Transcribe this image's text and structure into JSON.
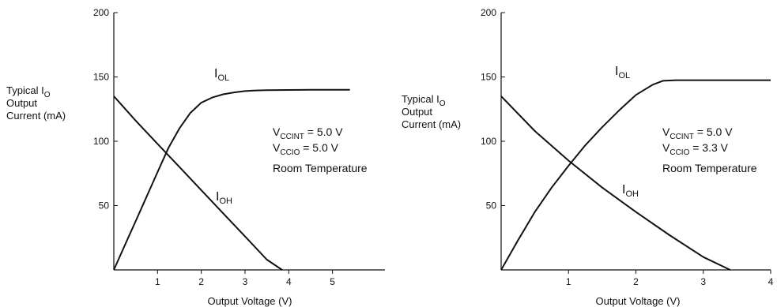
{
  "chart_data": [
    {
      "type": "line",
      "title": "",
      "ylabel": {
        "line1_main": "Typical I",
        "line1_sub": "O",
        "line2": "Output",
        "line3": "Current (mA)"
      },
      "xlabel": "Output Voltage (V)",
      "xlim": [
        0,
        6.2
      ],
      "ylim": [
        0,
        200
      ],
      "xticks": [
        1,
        2,
        3,
        4,
        5
      ],
      "yticks": [
        50,
        100,
        150,
        200
      ],
      "grid": false,
      "series": [
        {
          "name_main": "I",
          "name_sub": "OL",
          "x": [
            0,
            0.25,
            0.5,
            0.75,
            1.0,
            1.25,
            1.5,
            1.75,
            2.0,
            2.25,
            2.5,
            2.75,
            3.0,
            3.25,
            3.5,
            4.0,
            4.5,
            5.0,
            5.4
          ],
          "y": [
            0,
            19,
            38,
            57,
            76,
            95,
            110,
            122,
            130,
            134,
            136.5,
            138,
            139,
            139.5,
            139.7,
            139.9,
            140,
            140,
            140
          ]
        },
        {
          "name_main": "I",
          "name_sub": "OH",
          "x": [
            0,
            0.5,
            1.0,
            1.5,
            2.0,
            2.5,
            3.0,
            3.5,
            3.85
          ],
          "y": [
            135,
            116,
            98,
            80,
            62,
            44,
            26,
            8,
            0
          ]
        }
      ],
      "annotations": [
        {
          "main": "V",
          "sub": "CCINT",
          "rest": " = 5.0 V"
        },
        {
          "main": "V",
          "sub": "CCIO",
          "rest": " = 5.0 V"
        },
        {
          "main": "Room Temperature",
          "sub": "",
          "rest": ""
        }
      ]
    },
    {
      "type": "line",
      "title": "",
      "ylabel": {
        "line1_main": "Typical I",
        "line1_sub": "O",
        "line2": "Output",
        "line3": "Current (mA)"
      },
      "xlabel": "Output Voltage (V)",
      "xlim": [
        0,
        4.0
      ],
      "ylim": [
        0,
        200
      ],
      "xticks": [
        1,
        2,
        3,
        4
      ],
      "yticks": [
        50,
        100,
        150,
        200
      ],
      "grid": false,
      "series": [
        {
          "name_main": "I",
          "name_sub": "OL",
          "x": [
            0,
            0.25,
            0.5,
            0.75,
            1.0,
            1.25,
            1.5,
            1.75,
            2.0,
            2.25,
            2.4,
            2.6,
            3.0,
            3.5,
            4.0
          ],
          "y": [
            0,
            23,
            45,
            64,
            81,
            97,
            111,
            124,
            136,
            144,
            147,
            147.5,
            147.5,
            147.5,
            147.5
          ]
        },
        {
          "name_main": "I",
          "name_sub": "OH",
          "x": [
            0,
            0.5,
            1.0,
            1.5,
            2.0,
            2.5,
            3.0,
            3.4
          ],
          "y": [
            135,
            108,
            85,
            64,
            45,
            27,
            10,
            0
          ]
        }
      ],
      "annotations": [
        {
          "main": "V",
          "sub": "CCINT",
          "rest": " = 5.0 V"
        },
        {
          "main": "V",
          "sub": "CCIO",
          "rest": " = 3.3 V"
        },
        {
          "main": "Room Temperature",
          "sub": "",
          "rest": ""
        }
      ]
    }
  ]
}
